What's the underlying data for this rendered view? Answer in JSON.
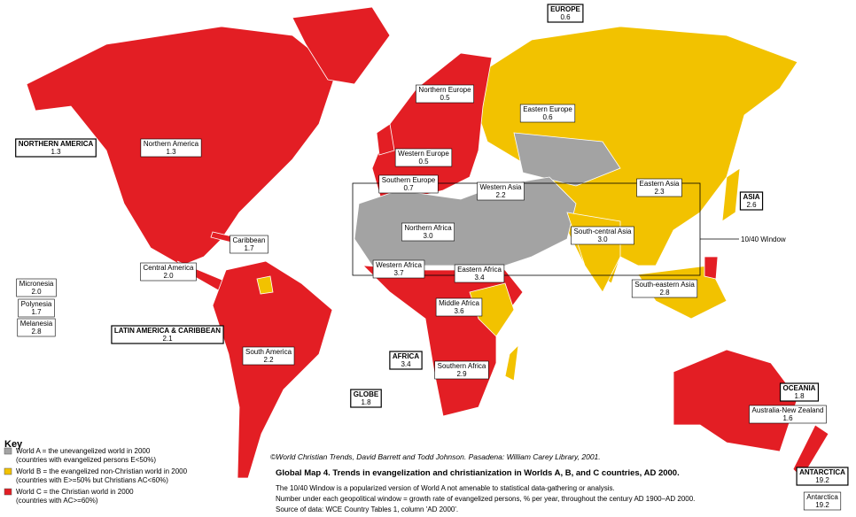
{
  "regions": [
    {
      "name": "EUROPE",
      "rate": "0.6",
      "macro": true
    },
    {
      "name": "Northern Europe",
      "rate": "0.5"
    },
    {
      "name": "Eastern Europe",
      "rate": "0.6"
    },
    {
      "name": "NORTHERN AMERICA",
      "rate": "1.3",
      "macro": true
    },
    {
      "name": "Northern America",
      "rate": "1.3"
    },
    {
      "name": "Western Europe",
      "rate": "0.5"
    },
    {
      "name": "Southern Europe",
      "rate": "0.7"
    },
    {
      "name": "Western Asia",
      "rate": "2.2"
    },
    {
      "name": "Eastern Asia",
      "rate": "2.3"
    },
    {
      "name": "ASIA",
      "rate": "2.6",
      "macro": true
    },
    {
      "name": "Northern Africa",
      "rate": "3.0"
    },
    {
      "name": "South-central Asia",
      "rate": "3.0"
    },
    {
      "name": "Caribbean",
      "rate": "1.7"
    },
    {
      "name": "Central America",
      "rate": "2.0"
    },
    {
      "name": "Western Africa",
      "rate": "3.7"
    },
    {
      "name": "Eastern Africa",
      "rate": "3.4"
    },
    {
      "name": "South-eastern Asia",
      "rate": "2.8"
    },
    {
      "name": "Micronesia",
      "rate": "2.0"
    },
    {
      "name": "Polynesia",
      "rate": "1.7"
    },
    {
      "name": "Melanesia",
      "rate": "2.8"
    },
    {
      "name": "Middle Africa",
      "rate": "3.6"
    },
    {
      "name": "LATIN AMERICA & CARIBBEAN",
      "rate": "2.1",
      "macro": true
    },
    {
      "name": "South America",
      "rate": "2.2"
    },
    {
      "name": "AFRICA",
      "rate": "3.4",
      "macro": true
    },
    {
      "name": "Southern Africa",
      "rate": "2.9"
    },
    {
      "name": "OCEANIA",
      "rate": "1.8",
      "macro": true
    },
    {
      "name": "GLOBE",
      "rate": "1.8",
      "macro": true
    },
    {
      "name": "Australia-New Zealand",
      "rate": "1.6"
    },
    {
      "name": "ANTARCTICA",
      "rate": "19.2",
      "macro": true
    },
    {
      "name": "Antarctica",
      "rate": "19.2"
    }
  ],
  "window_label": "10/40 Window",
  "key": {
    "title": "Key",
    "items": [
      {
        "color": "#a3a3a3",
        "lines": [
          "World A = the unevangelized world in 2000",
          "(countries with evangelized persons E<50%)"
        ]
      },
      {
        "color": "#f2c200",
        "lines": [
          "World B = the evangelized non-Christian world in 2000",
          "(countries with E>=50% but Christians AC<60%)"
        ]
      },
      {
        "color": "#e31e24",
        "lines": [
          "World C = the Christian world in 2000",
          "(countries with AC>=60%)"
        ]
      }
    ]
  },
  "credit": "©World Christian Trends, David Barrett and Todd Johnson. Pasadena: William Carey Library, 2001.",
  "title": "Global Map 4. Trends in evangelization and christianization in Worlds A, B, and C countries, AD 2000.",
  "notes": [
    "The 10/40 Window is a popularized version of World A not amenable to statistical data-gathering or analysis.",
    "Number under each geopolitical window = growth rate of evangelized persons, % per year, throughout the century AD 1900–AD 2000.",
    "Source of data: WCE Country Tables 1, column 'AD 2000'."
  ]
}
